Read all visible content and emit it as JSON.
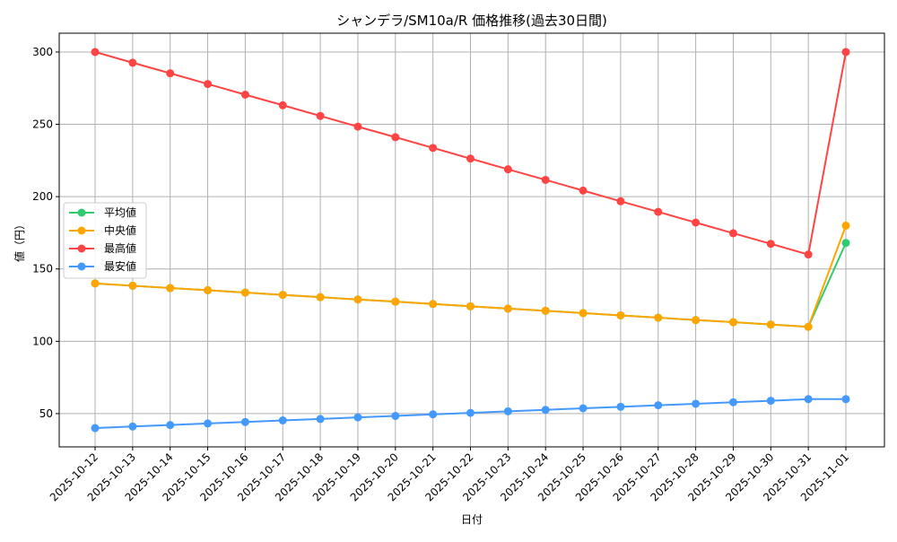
{
  "chart_data": {
    "type": "line",
    "title": "シャンデラ/SM10a/R 価格推移(過去30日間)",
    "xlabel": "日付",
    "ylabel": "値（円）",
    "ylim": [
      27,
      313
    ],
    "yticks": [
      50,
      100,
      150,
      200,
      250,
      300
    ],
    "grid": true,
    "legend_position": "center-left",
    "x": [
      "2025-10-12",
      "2025-10-13",
      "2025-10-14",
      "2025-10-15",
      "2025-10-16",
      "2025-10-17",
      "2025-10-18",
      "2025-10-19",
      "2025-10-20",
      "2025-10-21",
      "2025-10-22",
      "2025-10-23",
      "2025-10-24",
      "2025-10-25",
      "2025-10-26",
      "2025-10-27",
      "2025-10-28",
      "2025-10-29",
      "2025-10-30",
      "2025-10-31",
      "2025-11-01"
    ],
    "series": [
      {
        "name": "平均値",
        "color": "#2ecc71",
        "values": [
          140,
          138.4,
          136.8,
          135.3,
          133.7,
          132.1,
          130.5,
          128.9,
          127.4,
          125.8,
          124.2,
          122.6,
          121.1,
          119.5,
          117.9,
          116.3,
          114.7,
          113.2,
          111.6,
          110,
          168
        ]
      },
      {
        "name": "中央値",
        "color": "#ffa500",
        "values": [
          140,
          138.4,
          136.8,
          135.3,
          133.7,
          132.1,
          130.5,
          128.9,
          127.4,
          125.8,
          124.2,
          122.6,
          121.1,
          119.5,
          117.9,
          116.3,
          114.7,
          113.2,
          111.6,
          110,
          180
        ]
      },
      {
        "name": "最高値",
        "color": "#ff4444",
        "values": [
          300,
          292.6,
          285.3,
          277.9,
          270.5,
          263.2,
          255.8,
          248.4,
          241.1,
          233.7,
          226.3,
          218.9,
          211.6,
          204.2,
          196.8,
          189.5,
          182.1,
          174.7,
          167.4,
          160,
          300
        ]
      },
      {
        "name": "最安値",
        "color": "#4499ff",
        "values": [
          40,
          41.1,
          42.1,
          43.2,
          44.2,
          45.3,
          46.3,
          47.4,
          48.4,
          49.5,
          50.5,
          51.6,
          52.6,
          53.7,
          54.7,
          55.8,
          56.8,
          57.9,
          58.9,
          60,
          60
        ]
      }
    ]
  }
}
